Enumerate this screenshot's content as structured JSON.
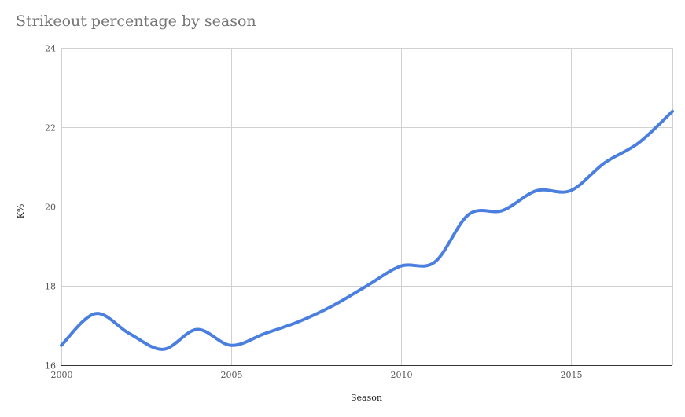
{
  "chart_data": {
    "type": "line",
    "title": "Strikeout percentage by season",
    "xlabel": "Season",
    "ylabel": "K%",
    "xlim": [
      2000,
      2018
    ],
    "ylim": [
      16,
      24
    ],
    "x_ticks": [
      2000,
      2005,
      2010,
      2015
    ],
    "x_tick_labels": [
      "2000",
      "2005",
      "2010",
      "2015"
    ],
    "y_ticks": [
      16,
      18,
      20,
      22,
      24
    ],
    "y_tick_labels": [
      "16",
      "18",
      "20",
      "22",
      "24"
    ],
    "grid": true,
    "legend": "none",
    "x": [
      2000,
      2001,
      2002,
      2003,
      2004,
      2005,
      2006,
      2007,
      2008,
      2009,
      2010,
      2011,
      2012,
      2013,
      2014,
      2015,
      2016,
      2017,
      2018
    ],
    "series": [
      {
        "color": "#4a7fe0",
        "values": [
          16.5,
          17.3,
          16.8,
          16.4,
          16.9,
          16.5,
          16.8,
          17.1,
          17.5,
          18.0,
          18.5,
          18.6,
          19.8,
          19.9,
          20.4,
          20.4,
          21.1,
          21.6,
          22.4
        ]
      }
    ]
  }
}
